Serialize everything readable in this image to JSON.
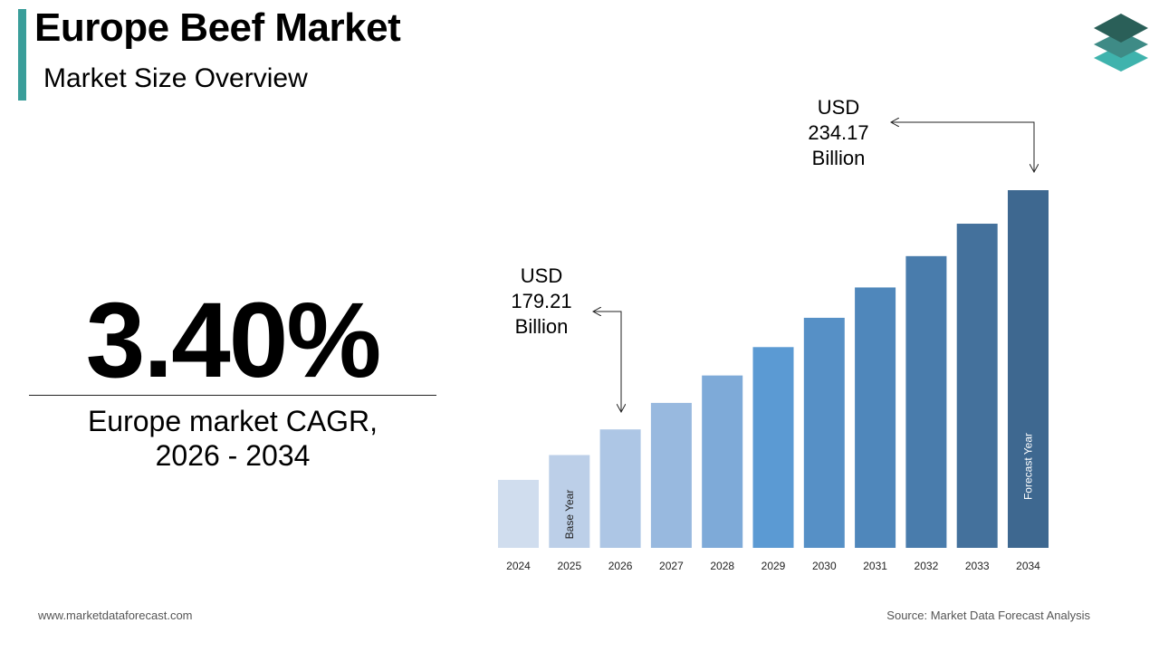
{
  "header": {
    "title": "Europe Beef Market",
    "subtitle": "Market Size Overview",
    "logo_icon": "stacked-layers-logo"
  },
  "kpi": {
    "value": "3.40%",
    "label_line1": "Europe market CAGR,",
    "label_line2": "2026 - 2034"
  },
  "annotations": {
    "base": {
      "line1": "USD",
      "line2": "179.21",
      "line3": "Billion"
    },
    "forecast": {
      "line1": "USD",
      "line2": "234.17",
      "line3": "Billion"
    }
  },
  "footer": {
    "website": "www.marketdataforecast.com",
    "source": "Source: Market Data Forecast Analysis"
  },
  "chart_data": {
    "type": "bar",
    "title": "",
    "xlabel": "",
    "ylabel": "",
    "categories": [
      "2024",
      "2025",
      "2026",
      "2027",
      "2028",
      "2029",
      "2030",
      "2031",
      "2032",
      "2033",
      "2034"
    ],
    "values": [
      167.62,
      173.32,
      179.21,
      185.3,
      191.6,
      198.12,
      204.85,
      211.82,
      219.02,
      226.47,
      234.17
    ],
    "labeled_values": {
      "2026": 179.21,
      "2034": 234.17
    },
    "unit": "USD Billion",
    "ylim": [
      152,
      234.17
    ],
    "grid": false,
    "bar_labels": {
      "2025": "Base Year",
      "2034": "Forecast Year"
    },
    "colors": [
      "#d0ddee",
      "#bccfe8",
      "#adc6e5",
      "#98b9df",
      "#7eaad8",
      "#5b9ad3",
      "#5690c6",
      "#4f87bb",
      "#497cac",
      "#44719c",
      "#3e6890"
    ]
  }
}
